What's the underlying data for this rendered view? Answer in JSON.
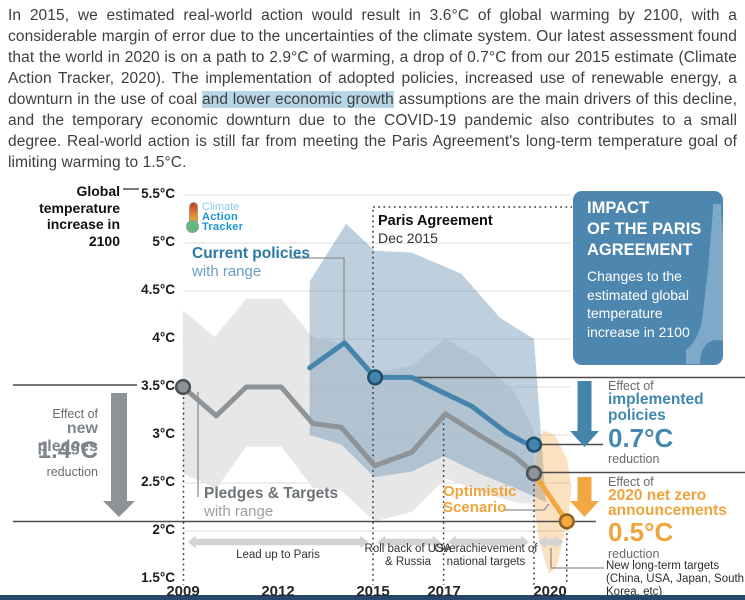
{
  "paragraph": {
    "before_highlight": "In 2015, we estimated real-world action would result in 3.6°C of global warming by 2100, with a considerable margin of error due to the uncertainties of the climate system. Our latest assessment found that the world in 2020 is on a path to 2.9°C of warming, a drop of 0.7°C from our 2015 estimate (Climate Action Tracker, 2020). The implementation of adopted policies, increased use of renewable energy, a downturn in the use of coal ",
    "highlight": "and lower economic growth",
    "after_highlight": " assumptions are the main drivers of this decline, and the temporary economic downturn due to the COVID-19 pandemic also contributes to a small degree. Real-world action is still far from meeting the Paris Agreement's long-term temperature goal of limiting warming to 1.5°C.",
    "highlight_color": "#b7d7e9"
  },
  "logo": {
    "line1": "Climate",
    "line2": "Action",
    "line3": "Tracker"
  },
  "axis": {
    "y_label": "Global\ntemperature\nincrease in\n2100",
    "y_ticks": [
      "5.5°C",
      "5°C",
      "4.5°C",
      "4°C",
      "3.5°C",
      "3°C",
      "2.5°C",
      "2°C",
      "1.5°C"
    ],
    "x_ticks": [
      "2009",
      "2012",
      "2015",
      "2017",
      "2020"
    ]
  },
  "labels": {
    "current_policies": "Current policies",
    "current_policies_sub": "with range",
    "pledges_targets": "Pledges & Targets",
    "pledges_targets_sub": "with range",
    "paris": "Paris Agreement",
    "paris_date": "Dec 2015",
    "optimistic": "Optimistic\nScenario"
  },
  "impact_box": {
    "title": "IMPACT\nOF THE PARIS\nAGREEMENT",
    "body": "Changes to the estimated global temperature increase in 2100",
    "bg": "#4d87b0",
    "tower_color": "#7ea9c8"
  },
  "effects": {
    "new_pledges": {
      "prefix": "Effect of",
      "name": "new pledges",
      "value": "1.4°C",
      "suffix": "reduction",
      "arrow_color": "#8d9397"
    },
    "implemented": {
      "prefix": "Effect of",
      "name": "implemented\npolicies",
      "value": "0.7°C",
      "suffix": "reduction",
      "arrow_color": "#4584ac"
    },
    "net_zero": {
      "prefix": "Effect of",
      "name": "2020 net zero\nannouncements",
      "value": "0.5°C",
      "suffix": "reduction",
      "arrow_color": "#f3a740"
    }
  },
  "timeline": {
    "labels": [
      "Lead up to Paris",
      "Roll back of USA & Russia",
      "Overachievement of national targets"
    ],
    "note": "New long-term targets (China, USA, Japan, South Korea, etc)"
  },
  "chart_data": {
    "type": "line",
    "title": "Global temperature increase in 2100",
    "ylabel": "Global temperature increase in 2100",
    "ylim": [
      1.5,
      5.5
    ],
    "grid": true,
    "x_tick_years": [
      2009,
      2012,
      2015,
      2017,
      2020
    ],
    "y_tick_temps": [
      5.5,
      5,
      4.5,
      4,
      3.5,
      3,
      2.5,
      2,
      1.5
    ],
    "gridline_temps": [
      5.5,
      5,
      4.5,
      4,
      3.5,
      3,
      2.5,
      2
    ],
    "series": [
      {
        "name": "Pledges & Targets",
        "color": "#8d9397",
        "width": 5,
        "points": [
          [
            2009,
            3.5
          ],
          [
            2010.05,
            3.2
          ],
          [
            2011,
            3.5
          ],
          [
            2012.1,
            3.5
          ],
          [
            2013.1,
            3.12
          ],
          [
            2014,
            3.08
          ],
          [
            2015.05,
            2.68
          ],
          [
            2016.1,
            2.82
          ],
          [
            2017.05,
            3.22
          ],
          [
            2018,
            3.0
          ],
          [
            2019,
            2.78
          ],
          [
            2019.56,
            2.6
          ]
        ]
      },
      {
        "name": "Current policies",
        "color": "#4584ac",
        "width": 5,
        "points": [
          [
            2013,
            3.7
          ],
          [
            2014.1,
            3.96
          ],
          [
            2015.06,
            3.6
          ],
          [
            2016.1,
            3.6
          ],
          [
            2017,
            3.44
          ],
          [
            2017.8,
            3.3
          ],
          [
            2018.8,
            3.02
          ],
          [
            2019.3,
            2.92
          ],
          [
            2019.56,
            2.9
          ]
        ]
      },
      {
        "name": "Optimistic Scenario",
        "color": "#f3a740",
        "width": 5,
        "points": [
          [
            2019.56,
            2.6
          ],
          [
            2020.49,
            2.1
          ]
        ]
      }
    ],
    "bands": [
      {
        "name": "Pledges & Targets range",
        "color": "#e6e6e6",
        "opacity": 0.95,
        "upper": [
          [
            2009,
            4.3
          ],
          [
            2010,
            4.02
          ],
          [
            2011,
            4.42
          ],
          [
            2012.1,
            4.42
          ],
          [
            2013.1,
            4.02
          ],
          [
            2014,
            3.95
          ],
          [
            2015.05,
            3.65
          ],
          [
            2016.1,
            3.72
          ],
          [
            2017.05,
            4.0
          ],
          [
            2018,
            3.8
          ],
          [
            2019,
            3.45
          ],
          [
            2019.56,
            3.05
          ]
        ],
        "lower": [
          [
            2009,
            2.6
          ],
          [
            2010.05,
            2.44
          ],
          [
            2011,
            2.88
          ],
          [
            2012.1,
            2.88
          ],
          [
            2013.1,
            2.45
          ],
          [
            2014,
            2.42
          ],
          [
            2015.05,
            2.1
          ],
          [
            2016.1,
            2.2
          ],
          [
            2017.05,
            2.55
          ],
          [
            2018,
            2.42
          ],
          [
            2019,
            2.3
          ],
          [
            2019.56,
            2.28
          ]
        ]
      },
      {
        "name": "Current policies range",
        "color": "#6e96b4",
        "opacity": 0.45,
        "upper": [
          [
            2013,
            4.6
          ],
          [
            2014.15,
            5.2
          ],
          [
            2015.05,
            4.92
          ],
          [
            2016.1,
            4.9
          ],
          [
            2017.5,
            4.68
          ],
          [
            2018.6,
            4.22
          ],
          [
            2019.56,
            4.0
          ]
        ],
        "tip": [
          2019.9,
          2.3
        ],
        "lower": [
          [
            2013,
            3.0
          ],
          [
            2014,
            2.9
          ],
          [
            2015.05,
            2.56
          ],
          [
            2016.1,
            2.62
          ],
          [
            2017,
            2.78
          ],
          [
            2018,
            2.6
          ],
          [
            2019,
            2.45
          ],
          [
            2019.56,
            2.36
          ]
        ]
      },
      {
        "name": "Optimistic Scenario range",
        "color": "#f4a33a",
        "opacity": 0.32,
        "polygon": [
          [
            2019.56,
            2.66
          ],
          [
            2019.8,
            3.05
          ],
          [
            2020.15,
            3.0
          ],
          [
            2020.5,
            2.75
          ],
          [
            2020.62,
            2.45
          ],
          [
            2020.55,
            2.2
          ],
          [
            2020.2,
            1.62
          ],
          [
            2019.98,
            1.56
          ],
          [
            2019.7,
            1.9
          ],
          [
            2019.56,
            2.27
          ]
        ]
      }
    ],
    "dots": [
      {
        "year": 2009,
        "temp": 3.5,
        "fill": "#8d9397",
        "stroke": "#4c5156"
      },
      {
        "year": 2015.06,
        "temp": 3.6,
        "fill": "#4584ac",
        "stroke": "#1e4f6d"
      },
      {
        "year": 2019.56,
        "temp": 2.9,
        "fill": "#4584ac",
        "stroke": "#1e4f6d"
      },
      {
        "year": 2019.56,
        "temp": 2.6,
        "fill": "#8d9397",
        "stroke": "#4c5156"
      },
      {
        "year": 2020.49,
        "temp": 2.1,
        "fill": "#f3a740",
        "stroke": "#8f621c"
      }
    ],
    "key_values": {
      "estimate_2015": "3.6°C",
      "estimate_2020": "2.9°C",
      "pledges_2020": "2.6°C",
      "optimistic_2020": "2.1°C",
      "reduction_new_pledges": "1.4°C",
      "reduction_implemented_policies": "0.7°C",
      "reduction_net_zero": "0.5°C"
    }
  }
}
